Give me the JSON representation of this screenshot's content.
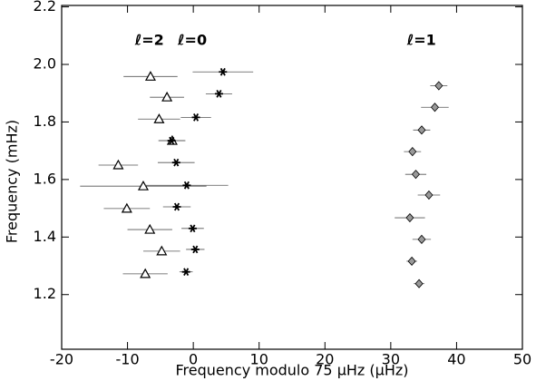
{
  "chart_data": {
    "type": "scatter",
    "xlabel": "Frequency modulo 75 μHz (μHz)",
    "ylabel": "Frequency  (mHz)",
    "xlim": [
      -20,
      50
    ],
    "xticks": [
      -20,
      -10,
      0,
      10,
      20,
      30,
      40,
      50
    ],
    "ylim": [
      1.01,
      2.205
    ],
    "yticks": [
      1.2,
      1.4,
      1.6,
      1.8,
      {
        "value": 2,
        "label": "2.0"
      },
      2.2
    ],
    "series": [
      {
        "name": "ℓ=2",
        "marker": "triangle",
        "color": "#000000",
        "x": [
          -6.5,
          -4.0,
          -5.2,
          -3.2,
          -11.4,
          -7.6,
          -10.1,
          -6.6,
          -4.8,
          -7.3
        ],
        "values": [
          1.958,
          1.886,
          1.81,
          1.735,
          1.65,
          1.577,
          1.499,
          1.426,
          1.351,
          1.272
        ],
        "xerr": [
          4.1,
          2.6,
          3.2,
          2.0,
          3.0,
          9.6,
          3.5,
          3.4,
          2.8,
          3.4
        ]
      },
      {
        "name": "ℓ=0",
        "marker": "asterisk",
        "color": "#000000",
        "x": [
          4.5,
          3.9,
          0.4,
          -3.3,
          -2.6,
          -1.0,
          -2.5,
          -0.1,
          0.3,
          -1.1
        ],
        "values": [
          1.974,
          1.898,
          1.816,
          1.735,
          1.659,
          1.58,
          1.505,
          1.43,
          1.357,
          1.279
        ],
        "xerr": [
          4.6,
          2.0,
          2.3,
          2.0,
          2.8,
          6.3,
          2.1,
          1.7,
          1.4,
          1.0
        ]
      },
      {
        "name": "ℓ=1",
        "marker": "diamond",
        "color": "#999999",
        "x": [
          37.3,
          36.7,
          34.7,
          33.3,
          33.8,
          35.8,
          32.9,
          34.7,
          33.2,
          34.3
        ],
        "values": [
          1.926,
          1.851,
          1.772,
          1.697,
          1.618,
          1.546,
          1.467,
          1.392,
          1.316,
          1.238
        ],
        "xerr": [
          1.3,
          2.1,
          1.3,
          1.3,
          1.6,
          1.7,
          2.3,
          1.4,
          0.8,
          0.8
        ]
      }
    ]
  }
}
